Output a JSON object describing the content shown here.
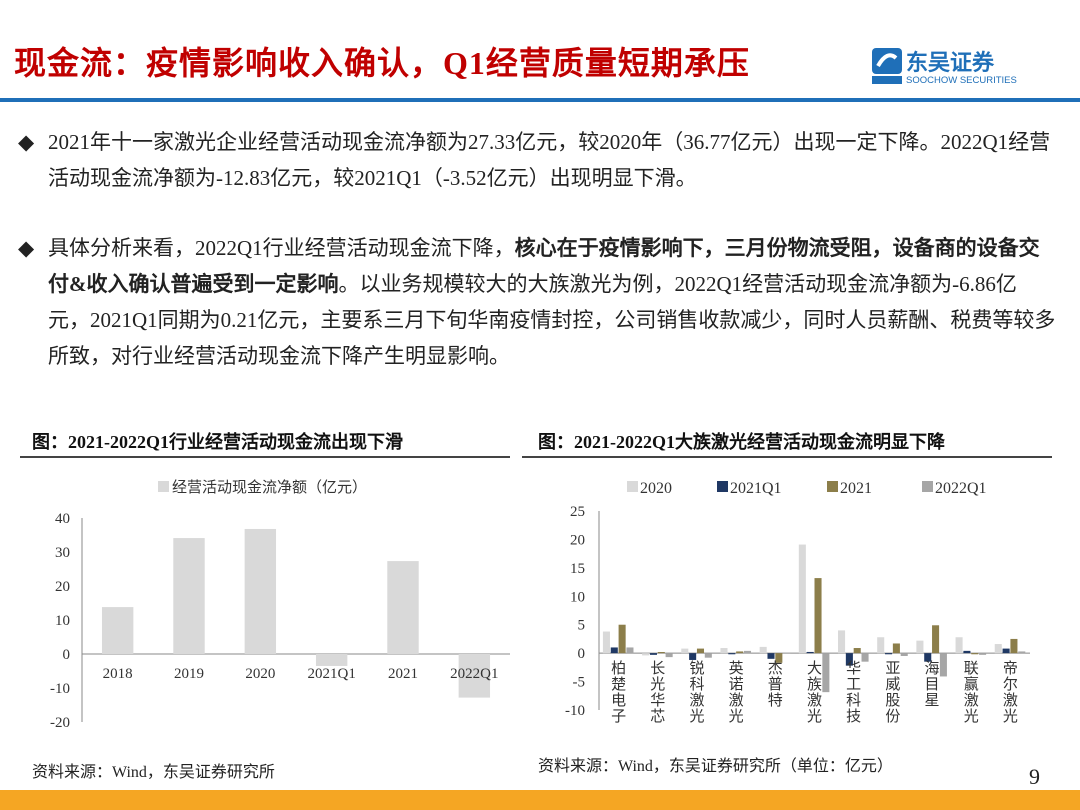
{
  "header": {
    "title": "现金流：疫情影响收入确认，Q1经营质量短期承压",
    "logo_cn": "东吴证券",
    "logo_en": "SOOCHOW SECURITIES",
    "logo_mark": "SCS"
  },
  "bullets": [
    {
      "icon": "diamond-icon",
      "parts": [
        {
          "text": "2021年十一家激光企业经营活动现金流净额为27.33亿元，较2020年（36.77亿元）出现一定下降。2022Q1经营活动现金流净额为-12.83亿元，较2021Q1（-3.52亿元）出现明显下滑。",
          "bold": false
        }
      ]
    },
    {
      "icon": "diamond-icon",
      "parts": [
        {
          "text": "具体分析来看，2022Q1行业经营活动现金流下降，",
          "bold": false
        },
        {
          "text": "核心在于疫情影响下，三月份物流受阻，设备商的设备交付&收入确认普遍受到一定影响",
          "bold": true
        },
        {
          "text": "。以业务规模较大的大族激光为例，2022Q1经营活动现金流净额为-6.86亿元，2021Q1同期为0.21亿元，主要系三月下旬华南疫情封控，公司销售收款减少，同时人员薪酬、税费等较多所致，对行业经营活动现金流下降产生明显影响。",
          "bold": false
        }
      ]
    }
  ],
  "left_chart": {
    "caption": "图：2021-2022Q1行业经营活动现金流出现下滑",
    "source": "资料来源：Wind，东吴证券研究所"
  },
  "right_chart": {
    "caption": "图：2021-2022Q1大族激光经营活动现金流明显下降",
    "source": "资料来源：Wind，东吴证券研究所（单位：亿元）"
  },
  "page_number": "9",
  "chart_data": [
    {
      "type": "bar",
      "categories": [
        "2018",
        "2019",
        "2020",
        "2021Q1",
        "2021",
        "2022Q1"
      ],
      "series": [
        {
          "name": "经营活动现金流净额（亿元）",
          "values": [
            13.8,
            34.1,
            36.77,
            -3.52,
            27.33,
            -12.83
          ],
          "color": "#d9d9d9"
        }
      ],
      "ylim": [
        -20,
        40
      ],
      "yticks": [
        -20,
        -10,
        0,
        10,
        20,
        30,
        40
      ],
      "legend": "top"
    },
    {
      "type": "bar",
      "categories": [
        "柏楚电子",
        "长光华芯",
        "锐科激光",
        "英诺激光",
        "杰普特",
        "大族激光",
        "华工科技",
        "亚威股份",
        "海目星",
        "联赢激光",
        "帝尔激光"
      ],
      "series": [
        {
          "name": "2020",
          "color": "#d9d9d9",
          "values": [
            3.8,
            -0.4,
            0.8,
            0.9,
            1.1,
            19.1,
            4.0,
            2.8,
            2.2,
            2.8,
            1.6
          ]
        },
        {
          "name": "2021Q1",
          "color": "#1f3864",
          "values": [
            1.0,
            -0.3,
            -1.2,
            -0.2,
            -1.0,
            0.21,
            -2.2,
            -0.2,
            -1.5,
            0.4,
            0.8
          ]
        },
        {
          "name": "2021",
          "color": "#8c7e4a",
          "values": [
            5.0,
            0.2,
            0.8,
            0.3,
            -1.7,
            13.2,
            0.9,
            1.7,
            4.9,
            -0.2,
            2.5
          ]
        },
        {
          "name": "2022Q1",
          "color": "#a6a6a6",
          "values": [
            1.0,
            -0.7,
            -0.8,
            0.4,
            0.1,
            -6.86,
            -1.5,
            -0.5,
            -4.1,
            -0.3,
            0.3
          ]
        }
      ],
      "ylim": [
        -10,
        25
      ],
      "yticks": [
        -10,
        -5,
        0,
        5,
        10,
        15,
        20,
        25
      ],
      "legend": "top"
    }
  ]
}
